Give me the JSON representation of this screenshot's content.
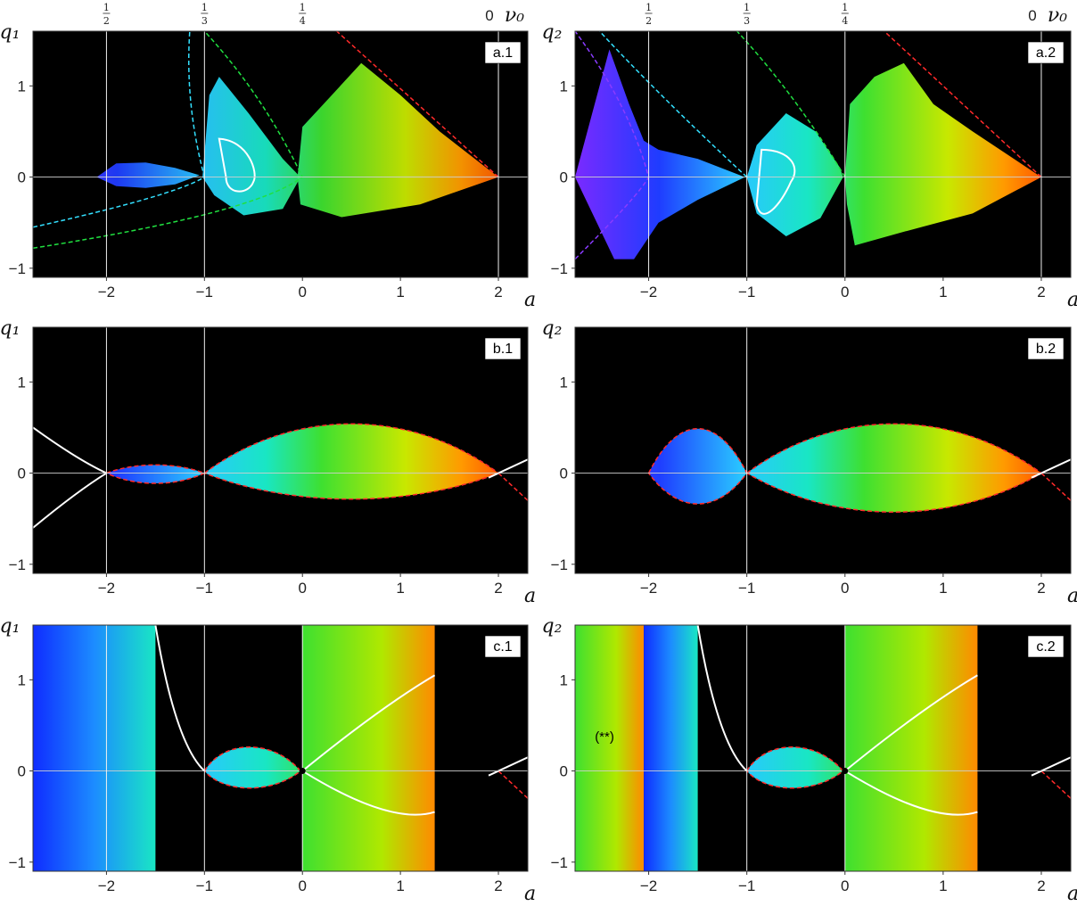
{
  "chart_data": [
    {
      "id": "a1",
      "type": "heatmap",
      "panel_label": "a.1",
      "xlabel": "a",
      "ylabel": "q₁",
      "xlim": [
        -2.75,
        2.3
      ],
      "ylim": [
        -1.1,
        1.6
      ],
      "xticks": [
        "−2",
        "−1",
        "0",
        "1",
        "2"
      ],
      "yticks": [
        "−1",
        "0",
        "1"
      ],
      "top_ticks": [
        {
          "x": -2,
          "num": "1",
          "den": "2"
        },
        {
          "x": -1,
          "num": "1",
          "den": "3"
        },
        {
          "x": 0,
          "num": "1",
          "den": "4"
        }
      ],
      "top_zero": "0",
      "top_var": "ν₀",
      "vertical_lines_at_a": [
        -2,
        -1,
        2
      ],
      "regions": [
        {
          "name": "blue",
          "color": "#2a66ff",
          "spine": [
            [
              -2.1,
              0
            ],
            [
              -1.9,
              0.15
            ],
            [
              -1.6,
              0.16
            ],
            [
              -1.3,
              0.1
            ],
            [
              -1.05,
              0.02
            ],
            [
              -1.3,
              -0.08
            ],
            [
              -1.6,
              -0.12
            ],
            [
              -1.9,
              -0.1
            ]
          ]
        },
        {
          "name": "cyan",
          "color": "#19e6c4",
          "spine": [
            [
              -1.02,
              0
            ],
            [
              -0.95,
              0.9
            ],
            [
              -0.85,
              1.1
            ],
            [
              -0.55,
              0.7
            ],
            [
              -0.2,
              0.2
            ],
            [
              -0.02,
              0
            ],
            [
              -0.2,
              -0.35
            ],
            [
              -0.6,
              -0.42
            ],
            [
              -0.9,
              -0.2
            ]
          ]
        },
        {
          "name": "green-orange",
          "color": "#40e020",
          "spine": [
            [
              -0.05,
              0
            ],
            [
              0.0,
              0.55
            ],
            [
              0.3,
              0.9
            ],
            [
              0.6,
              1.25
            ],
            [
              1.0,
              0.9
            ],
            [
              1.4,
              0.5
            ],
            [
              2.0,
              0
            ],
            [
              1.2,
              -0.3
            ],
            [
              0.4,
              -0.44
            ],
            [
              -0.02,
              -0.3
            ]
          ]
        }
      ]
    },
    {
      "id": "a2",
      "type": "heatmap",
      "panel_label": "a.2",
      "xlabel": "a",
      "ylabel": "q₂",
      "xlim": [
        -2.75,
        2.3
      ],
      "ylim": [
        -1.1,
        1.6
      ],
      "xticks": [
        "−2",
        "−1",
        "0",
        "1",
        "2"
      ],
      "yticks": [
        "−1",
        "0",
        "1"
      ],
      "top_ticks": [
        {
          "x": -2,
          "num": "1",
          "den": "2"
        },
        {
          "x": -1,
          "num": "1",
          "den": "3"
        },
        {
          "x": 0,
          "num": "1",
          "den": "4"
        }
      ],
      "top_zero": "0",
      "top_var": "ν₀",
      "vertical_lines_at_a": [
        -2,
        -1,
        0,
        2
      ]
    },
    {
      "id": "b1",
      "type": "heatmap",
      "panel_label": "b.1",
      "xlabel": "a",
      "ylabel": "q₁",
      "xlim": [
        -2.75,
        2.3
      ],
      "ylim": [
        -1.1,
        1.6
      ],
      "xticks": [
        "−2",
        "−1",
        "0",
        "1",
        "2"
      ],
      "yticks": [
        "−1",
        "0",
        "1"
      ],
      "vertical_lines_at_a": [
        -2,
        -1
      ],
      "lobes": [
        {
          "a_from": -2,
          "a_to": -1,
          "upper": 0.12,
          "lower": -0.15,
          "color": "#2f5fff"
        },
        {
          "a_from": -1,
          "a_to": 2,
          "upper": 0.72,
          "lower": -0.38,
          "color": "#3ee030"
        }
      ]
    },
    {
      "id": "b2",
      "type": "heatmap",
      "panel_label": "b.2",
      "xlabel": "a",
      "ylabel": "q₂",
      "xlim": [
        -2.75,
        2.3
      ],
      "ylim": [
        -1.1,
        1.6
      ],
      "xticks": [
        "−2",
        "−1",
        "0",
        "1",
        "2"
      ],
      "yticks": [
        "−1",
        "0",
        "1"
      ],
      "vertical_lines_at_a": [
        -1
      ],
      "lobes": [
        {
          "a_from": -2.0,
          "a_to": -1,
          "upper": 0.65,
          "lower": -0.45,
          "color": "#2f5fff"
        },
        {
          "a_from": -1,
          "a_to": 2,
          "upper": 0.72,
          "lower": -0.57,
          "color": "#3ee030"
        }
      ]
    },
    {
      "id": "c1",
      "type": "heatmap",
      "panel_label": "c.1",
      "xlabel": "a",
      "ylabel": "q₁",
      "xlim": [
        -2.75,
        2.3
      ],
      "ylim": [
        -1.1,
        1.6
      ],
      "xticks": [
        "−2",
        "−1",
        "0",
        "1",
        "2"
      ],
      "yticks": [
        "−1",
        "0",
        "1"
      ],
      "vertical_lines_at_a": [
        -2,
        -1,
        0
      ],
      "bands": [
        {
          "a_from": -2.75,
          "a_to": -1.5,
          "kind": "blue"
        },
        {
          "a_from": 0,
          "a_to": 1.35,
          "kind": "green"
        }
      ],
      "fixed_point": [
        0,
        0
      ]
    },
    {
      "id": "c2",
      "type": "heatmap",
      "panel_label": "c.2",
      "xlabel": "a",
      "ylabel": "q₂",
      "xlim": [
        -2.75,
        2.3
      ],
      "ylim": [
        -1.1,
        1.6
      ],
      "xticks": [
        "−2",
        "−1",
        "0",
        "1",
        "2"
      ],
      "yticks": [
        "−1",
        "0",
        "1"
      ],
      "vertical_lines_at_a": [
        -1,
        0
      ],
      "bands": [
        {
          "a_from": -2.75,
          "a_to": -2.05,
          "kind": "green"
        },
        {
          "a_from": -2.05,
          "a_to": -1.5,
          "kind": "blue"
        },
        {
          "a_from": 0,
          "a_to": 1.35,
          "kind": "green"
        }
      ],
      "annotation": "(**)",
      "fixed_point": [
        0,
        0
      ]
    }
  ]
}
